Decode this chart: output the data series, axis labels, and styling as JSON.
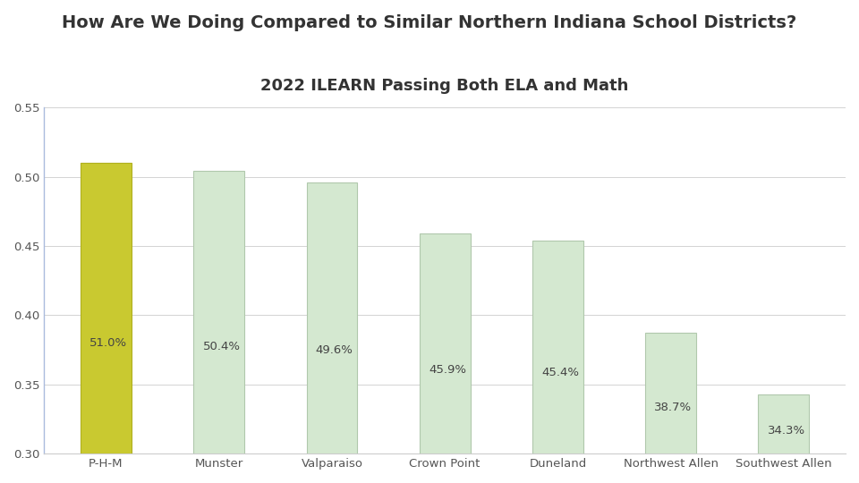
{
  "title": "How Are We Doing Compared to Similar Northern Indiana School Districts?",
  "subtitle": "2022 ILEARN Passing Both ELA and Math",
  "categories": [
    "P-H-M",
    "Munster",
    "Valparaiso",
    "Crown Point",
    "Duneland",
    "Northwest Allen",
    "Southwest Allen"
  ],
  "values": [
    0.51,
    0.504,
    0.496,
    0.459,
    0.454,
    0.387,
    0.343
  ],
  "labels": [
    "51.0%",
    "50.4%",
    "49.6%",
    "45.9%",
    "45.4%",
    "38.7%",
    "34.3%"
  ],
  "bar_colors": [
    "#c9c930",
    "#d4e8d0",
    "#d4e8d0",
    "#d4e8d0",
    "#d4e8d0",
    "#d4e8d0",
    "#d4e8d0"
  ],
  "edge_colors": [
    "#b0b020",
    "#b0c8ac",
    "#b0c8ac",
    "#b0c8ac",
    "#b0c8ac",
    "#b0c8ac",
    "#b0c8ac"
  ],
  "ylim": [
    0.3,
    0.55
  ],
  "yticks": [
    0.3,
    0.35,
    0.4,
    0.45,
    0.5,
    0.55
  ],
  "title_fontsize": 14,
  "subtitle_fontsize": 13,
  "label_fontsize": 9.5,
  "tick_fontsize": 9.5,
  "background_color": "#ffffff",
  "grid_color": "#cccccc",
  "left_spine_color": "#aabbdd",
  "bottom_spine_color": "#cccccc"
}
